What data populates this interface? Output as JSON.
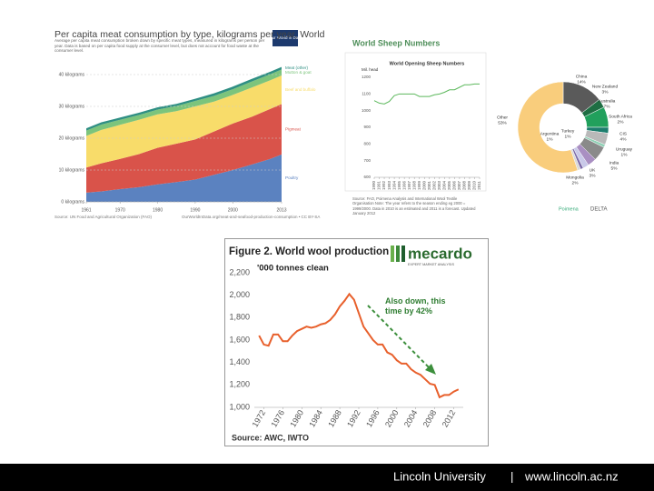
{
  "chart_data": [
    {
      "type": "area",
      "stacked": true,
      "title": "Per capita meat consumption by type, kilograms per year, World",
      "subtitle": "Average per capita meat consumption broken down by specific meat types, measured in kilograms per person per year. Data is based on per capita food supply at the consumer level, but does not account for food waste at the consumer level.",
      "logo": "Our World in Data",
      "x": [
        1961,
        1965,
        1970,
        1975,
        1980,
        1985,
        1990,
        1995,
        2000,
        2005,
        2010,
        2013
      ],
      "xlim": [
        1961,
        2013
      ],
      "xticks": [
        1961,
        1970,
        1980,
        1990,
        2000,
        2013
      ],
      "ylim": [
        0,
        45
      ],
      "yticks": [
        {
          "value": 0,
          "label": "0 kilograms"
        },
        {
          "value": 10,
          "label": "10 kilograms"
        },
        {
          "value": 20,
          "label": "20 kilograms"
        },
        {
          "value": 30,
          "label": "30 kilograms"
        },
        {
          "value": 40,
          "label": "40 kilograms"
        }
      ],
      "grid": true,
      "series": [
        {
          "name": "Poultry",
          "color": "#5b82c0",
          "values": [
            2.9,
            3.3,
            4,
            4.6,
            5.5,
            6.2,
            7,
            8.5,
            10,
            11.7,
            13.5,
            14.9
          ]
        },
        {
          "name": "Pigmeat",
          "color": "#d9534a",
          "values": [
            7.9,
            8.8,
            9.5,
            10.4,
            11.5,
            12.1,
            12.6,
            13.6,
            14.6,
            15,
            15.7,
            15.8
          ]
        },
        {
          "name": "Beef and buffalo",
          "color": "#f8dc6a",
          "values": [
            9.9,
            10.5,
            10.7,
            10.8,
            10.5,
            10.2,
            10.4,
            9.4,
            9,
            9.2,
            9,
            9
          ]
        },
        {
          "name": "Mutton & goat",
          "color": "#7cc47c",
          "values": [
            1.7,
            1.7,
            1.6,
            1.5,
            1.5,
            1.6,
            1.7,
            1.8,
            1.8,
            1.9,
            1.9,
            1.9
          ]
        },
        {
          "name": "Meat (other)",
          "color": "#2f8f83",
          "values": [
            0.7,
            0.7,
            0.7,
            0.7,
            0.7,
            0.7,
            0.7,
            0.8,
            0.8,
            0.8,
            0.8,
            0.8
          ]
        }
      ],
      "source": "Source: UN Food and Agricultural Organization (FAO)",
      "source_url": "OurWorldInData.org/meat-and-seafood-production-consumption • CC BY-SA"
    },
    {
      "type": "line",
      "title": "World Sheep Numbers",
      "subtitle": "World Opening Sheep Numbers",
      "ylabel": "Mil. head",
      "x": [
        1990,
        1991,
        1992,
        1993,
        1994,
        1995,
        1996,
        1997,
        1998,
        1999,
        2000,
        2001,
        2002,
        2003,
        2004,
        2005,
        2006,
        2007,
        2008,
        2009,
        2010,
        2011
      ],
      "xlim": [
        1990,
        2011
      ],
      "xticks": [
        1990,
        1991,
        1992,
        1993,
        1994,
        1995,
        1996,
        1997,
        1998,
        1999,
        2000,
        2001,
        2002,
        2003,
        2004,
        2005,
        2006,
        2007,
        2008,
        2009,
        2010,
        2011
      ],
      "ylim": [
        600,
        1200
      ],
      "yticks": [
        600,
        700,
        800,
        900,
        1000,
        1100,
        1200
      ],
      "grid": false,
      "series": [
        {
          "name": "World Opening Sheep Numbers",
          "color": "#5cb85c",
          "values": [
            1060,
            1045,
            1040,
            1055,
            1090,
            1100,
            1100,
            1100,
            1100,
            1085,
            1085,
            1085,
            1095,
            1100,
            1110,
            1125,
            1125,
            1140,
            1155,
            1155,
            1160,
            1160
          ]
        }
      ],
      "note": "Source: FAO, Poimena Analysis and International Wool Textile Organisation Note: The year refers to the season ending eg 2000 = 1999/2000. Data in 2010 is an estimated and 2011 is a forecast. Updated January 2012",
      "logos": [
        "Poimena",
        "DELTA"
      ]
    },
    {
      "type": "pie",
      "donut": true,
      "categories": [
        "China",
        "New Zealand",
        "Australia",
        "South Africa",
        "CIS",
        "Uruguay",
        "India",
        "UK",
        "Mongolia",
        "Turkey",
        "Argentina",
        "Other"
      ],
      "values": [
        14,
        3,
        7,
        2,
        4,
        1,
        5,
        3,
        2,
        1,
        1,
        53
      ],
      "value_labels": [
        "14%",
        "3%",
        "7%",
        "2%",
        "4%",
        "1%",
        "5%",
        "3%",
        "2%",
        "1%",
        "1%",
        "53%"
      ],
      "colors": [
        "#5a5a5a",
        "#1f6e43",
        "#21a05c",
        "#1c7d6d",
        "#b9b9b9",
        "#8fd0b5",
        "#8a8a8a",
        "#a98fc2",
        "#c8c8e8",
        "#7b6aa8",
        "#d9d9d9",
        "#f9cd7c"
      ]
    },
    {
      "type": "line",
      "title": "Figure 2. World wool production",
      "subtitle": "'000 tonnes clean",
      "logo": "mecardo",
      "logo_tagline": "EXPERT MARKET ANALYSIS",
      "annotation": "Also down, this time by 42%",
      "x": [
        1971,
        1972,
        1973,
        1974,
        1975,
        1976,
        1977,
        1978,
        1979,
        1980,
        1981,
        1982,
        1983,
        1984,
        1985,
        1986,
        1987,
        1988,
        1989,
        1990,
        1991,
        1992,
        1993,
        1994,
        1995,
        1996,
        1997,
        1998,
        1999,
        2000,
        2001,
        2002,
        2003,
        2004,
        2005,
        2006,
        2007,
        2008,
        2009,
        2010,
        2011,
        2012,
        2013
      ],
      "xlim": [
        1970,
        2014
      ],
      "xticks": [
        1972,
        1976,
        1980,
        1984,
        1988,
        1992,
        1996,
        2000,
        2004,
        2008,
        2012
      ],
      "ylim": [
        1000,
        2200
      ],
      "yticks": [
        {
          "value": 1000,
          "label": "1,000"
        },
        {
          "value": 1200,
          "label": "1,200"
        },
        {
          "value": 1400,
          "label": "1,400"
        },
        {
          "value": 1600,
          "label": "1,600"
        },
        {
          "value": 1800,
          "label": "1,800"
        },
        {
          "value": 2000,
          "label": "2,000"
        },
        {
          "value": 2200,
          "label": "2,200"
        }
      ],
      "grid": false,
      "series": [
        {
          "name": "World wool production",
          "color": "#e8602c",
          "values": [
            1640,
            1560,
            1550,
            1650,
            1650,
            1590,
            1590,
            1640,
            1680,
            1700,
            1720,
            1710,
            1720,
            1740,
            1750,
            1780,
            1830,
            1900,
            1950,
            2010,
            1960,
            1840,
            1720,
            1660,
            1600,
            1560,
            1560,
            1490,
            1470,
            1420,
            1390,
            1390,
            1340,
            1310,
            1290,
            1250,
            1210,
            1200,
            1090,
            1110,
            1110,
            1140,
            1160
          ]
        }
      ],
      "source": "Source: AWC, IWTO"
    }
  ],
  "footer": {
    "organization": "Lincoln University",
    "separator": "|",
    "url": "www.lincoln.ac.nz"
  }
}
